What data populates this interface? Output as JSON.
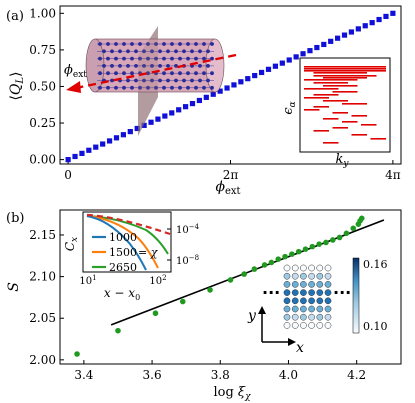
{
  "panel_a_label": "(a)",
  "panel_b_label": "(b)",
  "colors": {
    "marker_blue": "#1010d8",
    "fit_black": "#000000",
    "point_green": "#1f9a1f",
    "spectrum_red": "#e00000",
    "cylinder": "#d8a8b8",
    "plane": "#8a6a70",
    "curve_blue": "#1f77b4",
    "curve_orange": "#ff7f0e",
    "curve_green": "#2ca02c",
    "curve_red_dashed": "#d62728",
    "colorbar_high": "#08306b",
    "colorbar_low": "#f7fbff"
  },
  "cylinder_label": "ϕext",
  "inset_a": {
    "ylabel": "ϵα",
    "xlabel": "ky"
  },
  "inset_b": {
    "ylabel": "Cx",
    "xlabel": "x − x0",
    "legend_equals": "= χ",
    "xticks": [
      "10¹",
      "10²"
    ],
    "yticks": [
      "10⁻⁴",
      "10⁻⁸"
    ],
    "legend": [
      "1000",
      "1500",
      "2650"
    ]
  },
  "lattice": {
    "dots_label": "…",
    "axis_y": "y",
    "axis_x": "x"
  },
  "colorbar": {
    "ticks": [
      "0.16",
      "0.10"
    ],
    "range": [
      0.1,
      0.16
    ]
  },
  "chart_data": [
    {
      "type": "scatter",
      "panel": "(a)",
      "xlabel": "ϕext",
      "ylabel": "⟨QL⟩",
      "xticks": [
        0,
        2,
        4
      ],
      "xtick_labels": [
        "0",
        "2π",
        "4π"
      ],
      "yticks": [
        0.0,
        0.25,
        0.5,
        0.75,
        1.0
      ],
      "ytick_labels": [
        "0.00",
        "0.25",
        "0.50",
        "0.75",
        "1.00"
      ],
      "xlim": [
        -0.1,
        4.1
      ],
      "ylim": [
        -0.03,
        1.05
      ],
      "series": [
        {
          "x_range_in_pi": [
            0,
            4
          ],
          "y_range": [
            0.0,
            1.0
          ],
          "n_points": 48,
          "relation": "y = x/(4π)"
        }
      ]
    },
    {
      "type": "scatter",
      "panel": "(b)",
      "xlabel": "log ξχ",
      "ylabel": "S",
      "xticks": [
        3.4,
        3.6,
        3.8,
        4.0,
        4.2
      ],
      "xtick_labels": [
        "3.4",
        "3.6",
        "3.8",
        "4.0",
        "4.2"
      ],
      "yticks": [
        2.0,
        2.05,
        2.1,
        2.15
      ],
      "ytick_labels": [
        "2.00",
        "2.05",
        "2.10",
        "2.15"
      ],
      "xlim": [
        3.33,
        4.33
      ],
      "ylim": [
        1.995,
        2.18
      ],
      "series": [
        {
          "type": "scatter",
          "x": [
            3.38,
            3.5,
            3.61,
            3.69,
            3.77,
            3.83,
            3.87,
            3.9,
            3.93,
            3.95,
            3.97,
            3.99,
            4.01,
            4.03,
            4.05,
            4.07,
            4.09,
            4.11,
            4.13,
            4.15,
            4.17,
            4.19,
            4.205,
            4.21,
            4.215
          ],
          "y": [
            2.007,
            2.035,
            2.056,
            2.07,
            2.084,
            2.096,
            2.103,
            2.109,
            2.114,
            2.117,
            2.121,
            2.124,
            2.127,
            2.13,
            2.133,
            2.136,
            2.139,
            2.141,
            2.144,
            2.147,
            2.152,
            2.158,
            2.163,
            2.167,
            2.17
          ]
        },
        {
          "type": "line",
          "x": [
            3.48,
            4.28
          ],
          "y": [
            2.042,
            2.168
          ]
        }
      ]
    }
  ]
}
